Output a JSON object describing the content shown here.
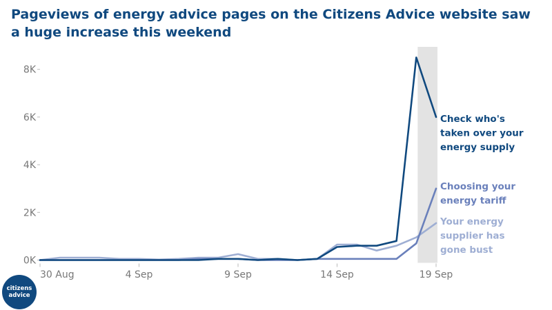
{
  "chart_data": {
    "type": "line",
    "title": "Pageviews of energy advice pages on the Citizens Advice website saw a huge increase this weekend",
    "x": [
      "2021-08-30",
      "2021-08-31",
      "2021-09-01",
      "2021-09-02",
      "2021-09-03",
      "2021-09-04",
      "2021-09-05",
      "2021-09-06",
      "2021-09-07",
      "2021-09-08",
      "2021-09-09",
      "2021-09-10",
      "2021-09-11",
      "2021-09-12",
      "2021-09-13",
      "2021-09-14",
      "2021-09-15",
      "2021-09-16",
      "2021-09-17",
      "2021-09-18",
      "2021-09-19",
      "2021-09-20"
    ],
    "x_tick_labels": [
      "30 Aug",
      "4 Sep",
      "9 Sep",
      "14 Sep",
      "19 Sep"
    ],
    "x_tick_values": [
      "2021-08-30",
      "2021-09-04",
      "2021-09-09",
      "2021-09-14",
      "2021-09-19"
    ],
    "highlight_range": [
      "2021-09-18",
      "2021-09-19"
    ],
    "y_ticks": [
      0,
      2000,
      4000,
      6000,
      8000
    ],
    "y_tick_labels": [
      "0K",
      "2K",
      "4K",
      "6K",
      "8K"
    ],
    "ylim": [
      0,
      9000
    ],
    "xlabel": "",
    "ylabel": "",
    "grid": false,
    "legend": "labels at line ends",
    "series": [
      {
        "name": "Your energy supplier has gone bust",
        "label_lines": [
          "Your energy",
          "supplier has",
          "gone bust"
        ],
        "color": "#9eaed3",
        "values": [
          0,
          100,
          100,
          100,
          50,
          50,
          20,
          50,
          100,
          100,
          250,
          50,
          50,
          0,
          50,
          650,
          650,
          400,
          600,
          950,
          1550,
          null
        ]
      },
      {
        "name": "Choosing your energy tariff",
        "label_lines": [
          "Choosing your",
          "energy tariff"
        ],
        "color": "#6a80bb",
        "values": [
          0,
          0,
          0,
          0,
          0,
          0,
          0,
          0,
          50,
          50,
          50,
          0,
          0,
          0,
          50,
          50,
          50,
          50,
          50,
          700,
          3000,
          null
        ]
      },
      {
        "name": "Check who's taken over your energy supply",
        "label_lines": [
          "Check who's",
          "taken over your",
          "energy supply"
        ],
        "color": "#10497f",
        "values": [
          0,
          0,
          0,
          0,
          0,
          0,
          0,
          0,
          0,
          50,
          50,
          0,
          50,
          0,
          50,
          550,
          600,
          600,
          800,
          8500,
          6000,
          null
        ]
      }
    ]
  },
  "logo": {
    "line1": "citizens",
    "line2": "advice",
    "color": "#10497f"
  }
}
